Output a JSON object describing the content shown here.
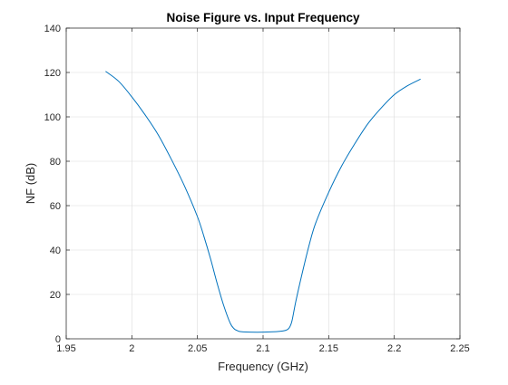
{
  "chart_data": {
    "type": "line",
    "title": "Noise Figure vs. Input Frequency",
    "xlabel": "Frequency (GHz)",
    "ylabel": "NF (dB)",
    "xlim": [
      1.95,
      2.25
    ],
    "ylim": [
      0,
      140
    ],
    "xticks": [
      1.95,
      2.0,
      2.05,
      2.1,
      2.15,
      2.2,
      2.25
    ],
    "xtick_labels": [
      "1.95",
      "2",
      "2.05",
      "2.1",
      "2.15",
      "2.2",
      "2.25"
    ],
    "yticks": [
      0,
      20,
      40,
      60,
      80,
      100,
      120,
      140
    ],
    "ytick_labels": [
      "0",
      "20",
      "40",
      "60",
      "80",
      "100",
      "120",
      "140"
    ],
    "grid": true,
    "series": [
      {
        "color": "#0072BD",
        "x": [
          1.98,
          1.99,
          2.0,
          2.01,
          2.02,
          2.03,
          2.04,
          2.05,
          2.055,
          2.06,
          2.065,
          2.07,
          2.075,
          2.078,
          2.08,
          2.082,
          2.085,
          2.09,
          2.1,
          2.11,
          2.115,
          2.118,
          2.12,
          2.122,
          2.125,
          2.13,
          2.135,
          2.14,
          2.15,
          2.16,
          2.17,
          2.18,
          2.19,
          2.2,
          2.21,
          2.22
        ],
        "y": [
          120.5,
          116,
          109,
          101,
          92,
          81,
          69,
          55,
          46,
          36,
          25,
          15,
          7,
          4.5,
          3.8,
          3.3,
          3.1,
          3.0,
          3.0,
          3.2,
          3.5,
          4.0,
          5.0,
          8,
          17,
          30,
          42,
          52,
          66,
          78,
          88,
          97,
          104,
          110,
          114,
          117
        ]
      }
    ]
  }
}
